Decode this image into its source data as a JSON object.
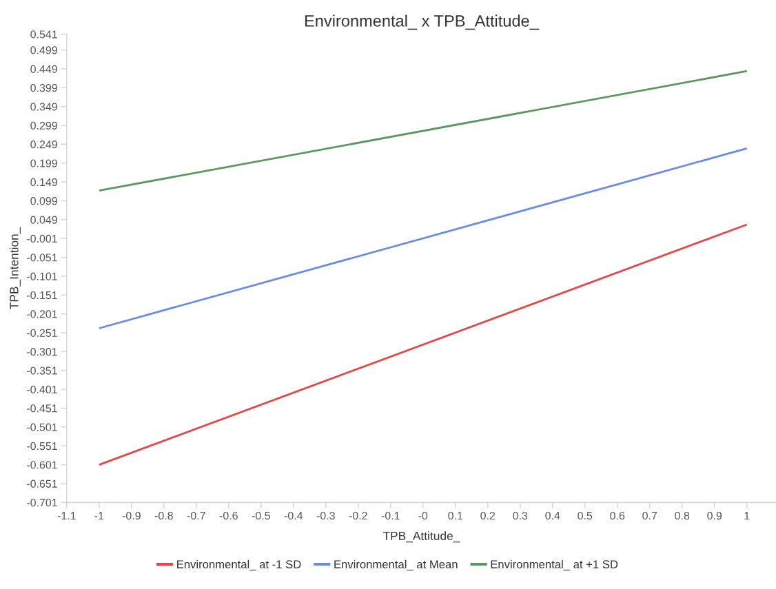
{
  "chart_data": {
    "type": "line",
    "title": "Environmental_ x TPB_Attitude_",
    "xlabel": "TPB_Attitude_",
    "ylabel": "TPB_Intention_",
    "x": [
      -1,
      1
    ],
    "series": [
      {
        "name": "Environmental_ at -1 SD",
        "color": "#e8474a",
        "values": [
          -0.601,
          0.036
        ]
      },
      {
        "name": "Environmental_ at Mean",
        "color": "#6a8ce8",
        "values": [
          -0.239,
          0.238
        ]
      },
      {
        "name": "Environmental_ at +1 SD",
        "color": "#5e9660",
        "values": [
          0.126,
          0.443
        ]
      }
    ],
    "xlim": [
      -1.1,
      1.09
    ],
    "xticks": [
      -1.1,
      -1,
      -0.9,
      -0.8,
      -0.7,
      -0.6,
      -0.5,
      -0.4,
      -0.3,
      -0.2,
      -0.1,
      {
        "value": 0,
        "label": "-0"
      },
      0.1,
      0.2,
      0.3,
      0.4,
      0.5,
      0.6,
      0.7,
      0.8,
      0.9,
      1
    ],
    "ylim": [
      -0.701,
      0.541
    ],
    "yticks": [
      -0.701,
      -0.651,
      -0.601,
      -0.551,
      -0.501,
      -0.451,
      -0.401,
      -0.351,
      -0.301,
      -0.251,
      -0.201,
      -0.151,
      -0.101,
      -0.051,
      -0.001,
      0.049,
      0.099,
      0.149,
      0.199,
      0.249,
      0.299,
      0.349,
      0.399,
      0.449,
      0.499,
      0.541
    ],
    "grid": false,
    "legend": "bottom",
    "marker": "none",
    "line_style": "solid"
  }
}
